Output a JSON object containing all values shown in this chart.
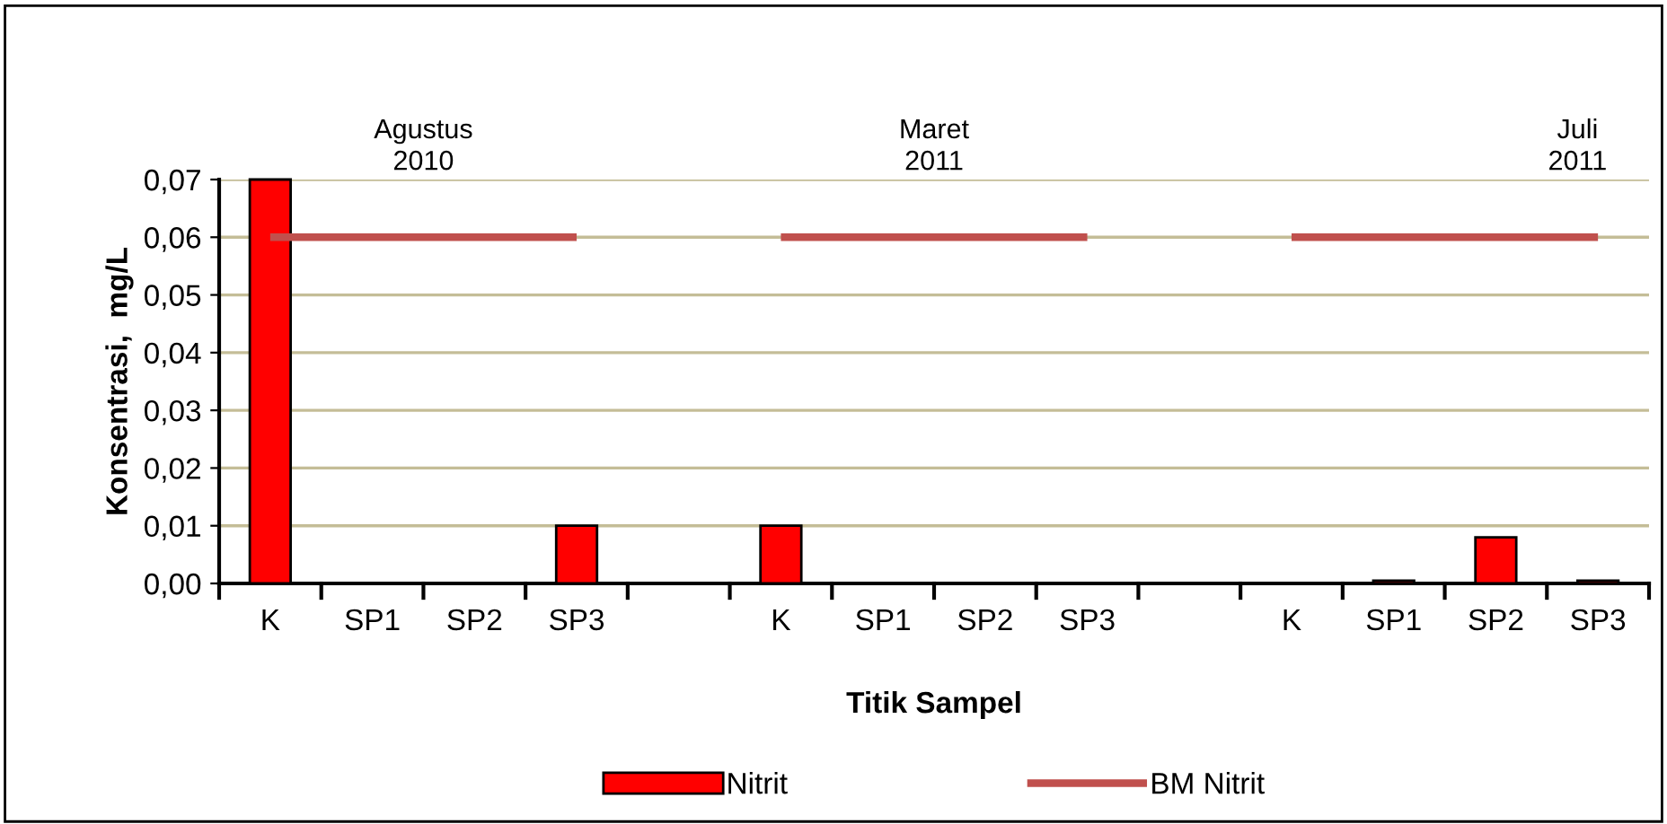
{
  "chart_data": {
    "type": "bar",
    "xlabel": "Titik Sampel",
    "ylabel": "Konsentrasi,  mg/L",
    "categories": [
      "K",
      "SP1",
      "SP2",
      "SP3",
      null,
      "K",
      "SP1",
      "SP2",
      "SP3",
      null,
      "K",
      "SP1",
      "SP2",
      "SP3"
    ],
    "series": [
      {
        "name": "Nitrit",
        "color": "#ff0000",
        "values": [
          0.07,
          null,
          null,
          0.01,
          null,
          0.01,
          null,
          null,
          null,
          null,
          null,
          0.0005,
          0.008,
          0.0005
        ]
      },
      {
        "name": "BM Nitrit",
        "type": "line",
        "color": "#c0504d",
        "values": [
          0.06,
          0.06,
          0.06,
          0.06,
          null,
          0.06,
          0.06,
          0.06,
          0.06,
          null,
          0.06,
          0.06,
          0.06,
          0.06
        ]
      }
    ],
    "annotations": [
      "Agustus\n2010",
      "Maret\n2011",
      "Juli\n2011"
    ],
    "ylim": [
      0,
      0.07
    ],
    "yticks": [
      {
        "value": 0,
        "label": "0,00"
      },
      {
        "value": 0.01,
        "label": "0,01"
      },
      {
        "value": 0.02,
        "label": "0,02"
      },
      {
        "value": 0.03,
        "label": "0,03"
      },
      {
        "value": 0.04,
        "label": "0,04"
      },
      {
        "value": 0.05,
        "label": "0,05"
      },
      {
        "value": 0.06,
        "label": "0,06"
      },
      {
        "value": 0.07,
        "label": "0,07"
      }
    ],
    "grid": "y",
    "legend": "bottom"
  }
}
